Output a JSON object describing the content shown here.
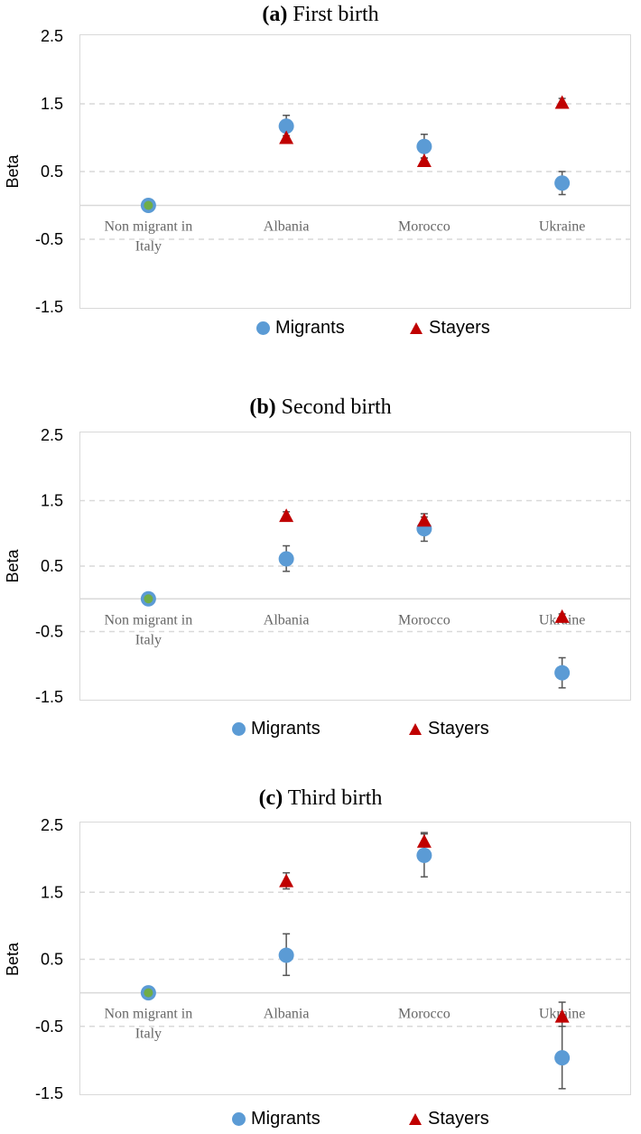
{
  "colors": {
    "migrants": "#5b9bd5",
    "stayers": "#c00000",
    "reference": "#70ad47",
    "grid": "#d9d9d9",
    "errorbar": "#555555"
  },
  "chart_data": [
    {
      "type": "scatter",
      "panel_letter": "(a)",
      "title": "First birth",
      "ylabel": "Beta",
      "ylim": [
        -1.5,
        2.5
      ],
      "yticks": [
        "2.5",
        "1.5",
        "0.5",
        "-0.5",
        "-1.5"
      ],
      "dashed_gridlines": [
        1.5,
        0.5,
        -0.5
      ],
      "categories": [
        "Non migrant in Italy",
        "Albania",
        "Morocco",
        "Ukraine"
      ],
      "category_lines": [
        [
          "Non migrant in",
          "Italy"
        ],
        [
          "Albania"
        ],
        [
          "Morocco"
        ],
        [
          "Ukraine"
        ]
      ],
      "reference": {
        "name": "Non migrant in Italy",
        "value": 0
      },
      "series": [
        {
          "name": "Migrants",
          "marker": "circle",
          "values": [
            0,
            1.17,
            0.87,
            0.33
          ],
          "err_low": [
            0,
            1.0,
            0.7,
            0.16
          ],
          "err_high": [
            0,
            1.33,
            1.05,
            0.5
          ]
        },
        {
          "name": "Stayers",
          "marker": "triangle",
          "values": [
            0,
            1.0,
            0.66,
            1.52
          ],
          "err_low": [
            0,
            0.97,
            0.62,
            1.48
          ],
          "err_high": [
            0,
            1.03,
            0.7,
            1.58
          ]
        }
      ],
      "legend": [
        "Migrants",
        "Stayers"
      ]
    },
    {
      "type": "scatter",
      "panel_letter": "(b)",
      "title": "Second birth",
      "ylabel": "Beta",
      "ylim": [
        -1.5,
        2.5
      ],
      "yticks": [
        "2.5",
        "1.5",
        "0.5",
        "-0.5",
        "-1.5"
      ],
      "dashed_gridlines": [
        1.5,
        0.5,
        -0.5
      ],
      "categories": [
        "Non migrant in Italy",
        "Albania",
        "Morocco",
        "Ukraine"
      ],
      "category_lines": [
        [
          "Non migrant in",
          "Italy"
        ],
        [
          "Albania"
        ],
        [
          "Morocco"
        ],
        [
          "Ukraine"
        ]
      ],
      "reference": {
        "name": "Non migrant in Italy",
        "value": 0
      },
      "series": [
        {
          "name": "Migrants",
          "marker": "circle",
          "values": [
            0,
            0.61,
            1.07,
            -1.13
          ],
          "err_low": [
            0,
            0.42,
            0.88,
            -1.36
          ],
          "err_high": [
            0,
            0.81,
            1.25,
            -0.9
          ]
        },
        {
          "name": "Stayers",
          "marker": "triangle",
          "values": [
            0,
            1.27,
            1.2,
            -0.27
          ],
          "err_low": [
            0,
            1.21,
            1.1,
            -0.31
          ],
          "err_high": [
            0,
            1.33,
            1.3,
            -0.23
          ]
        }
      ],
      "legend": [
        "Migrants",
        "Stayers"
      ]
    },
    {
      "type": "scatter",
      "panel_letter": "(c)",
      "title": "Third birth",
      "ylabel": "Beta",
      "ylim": [
        -1.5,
        2.5
      ],
      "yticks": [
        "2.5",
        "1.5",
        "0.5",
        "-0.5",
        "-1.5"
      ],
      "dashed_gridlines": [
        1.5,
        0.5,
        -0.5
      ],
      "categories": [
        "Non migrant in Italy",
        "Albania",
        "Morocco",
        "Ukraine"
      ],
      "category_lines": [
        [
          "Non migrant in",
          "Italy"
        ],
        [
          "Albania"
        ],
        [
          "Morocco"
        ],
        [
          "Ukraine"
        ]
      ],
      "reference": {
        "name": "Non migrant in Italy",
        "value": 0
      },
      "series": [
        {
          "name": "Migrants",
          "marker": "circle",
          "values": [
            0,
            0.56,
            2.05,
            -0.97
          ],
          "err_low": [
            0,
            0.26,
            1.73,
            -1.43
          ],
          "err_high": [
            0,
            0.88,
            2.37,
            -0.5
          ]
        },
        {
          "name": "Stayers",
          "marker": "triangle",
          "values": [
            0,
            1.67,
            2.26,
            -0.35
          ],
          "err_low": [
            0,
            1.55,
            2.13,
            -0.5
          ],
          "err_high": [
            0,
            1.79,
            2.39,
            -0.14
          ]
        }
      ],
      "legend": [
        "Migrants",
        "Stayers"
      ]
    }
  ]
}
